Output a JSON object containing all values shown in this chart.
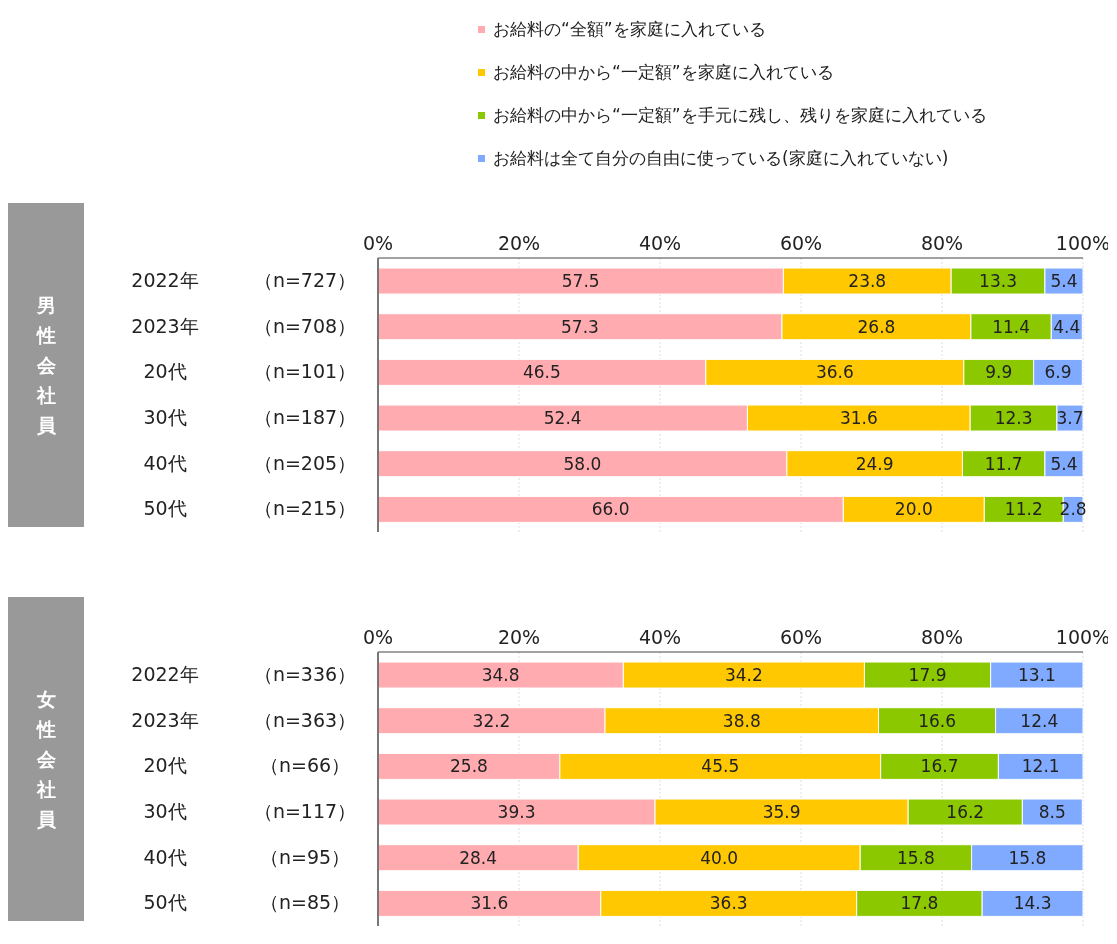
{
  "chart_data": [
    {
      "type": "bar",
      "orientation": "horizontal",
      "stacked": true,
      "ylabel": "男性会社員",
      "categories": [
        "2022年　（n=727）",
        "2023年　（n=708）",
        "20代　（n=101）",
        "30代　（n=187）",
        "40代　（n=205）",
        "50代　（n=215）"
      ],
      "series": [
        {
          "name": "お給料の“全額”を家庭に入れている",
          "color": "#ffabb0",
          "values": [
            57.5,
            57.3,
            46.5,
            52.4,
            58.0,
            66.0
          ],
          "value_labels": [
            "57.5",
            "57.3",
            "46.5",
            "52.4",
            "58.0",
            "66.0"
          ]
        },
        {
          "name": "お給料の中から“一定額”を家庭に入れている",
          "color": "#ffc800",
          "values": [
            23.8,
            26.8,
            36.6,
            31.6,
            24.9,
            20.0
          ],
          "value_labels": [
            "23.8",
            "26.8",
            "36.6",
            "31.6",
            "24.9",
            "20.0"
          ]
        },
        {
          "name": "お給料の中から“一定額”を手元に残し、残りを家庭に入れている",
          "color": "#8cc800",
          "values": [
            13.3,
            11.4,
            9.9,
            12.3,
            11.7,
            11.2
          ],
          "value_labels": [
            "13.3",
            "11.4",
            "9.9",
            "12.3",
            "11.7",
            "11.2"
          ]
        },
        {
          "name": "お給料は全て自分の自由に使っている(家庭に入れていない)",
          "color": "#80aaff",
          "values": [
            5.4,
            4.4,
            6.9,
            3.7,
            5.4,
            2.8
          ],
          "value_labels": [
            "5.4",
            "4.4",
            "6.9",
            "3.7",
            "5.4",
            "2.8"
          ]
        }
      ],
      "xlim": [
        0,
        100
      ],
      "xticks": [
        {
          "value": 0,
          "label": "0%"
        },
        {
          "value": 20,
          "label": "20%"
        },
        {
          "value": 40,
          "label": "40%"
        },
        {
          "value": 60,
          "label": "60%"
        },
        {
          "value": 80,
          "label": "80%"
        },
        {
          "value": 100,
          "label": "100%"
        }
      ],
      "grid": "x",
      "legend": "top"
    },
    {
      "type": "bar",
      "orientation": "horizontal",
      "stacked": true,
      "ylabel": "女性会社員",
      "categories": [
        "2022年　（n=336）",
        "2023年　（n=363）",
        "20代　（n=66）",
        "30代　（n=117）",
        "40代　（n=95）",
        "50代　（n=85）"
      ],
      "series": [
        {
          "color": "#ffabb0",
          "values": [
            34.8,
            32.2,
            25.8,
            39.3,
            28.4,
            31.6
          ],
          "value_labels": [
            "34.8",
            "32.2",
            "25.8",
            "39.3",
            "28.4",
            "31.6"
          ]
        },
        {
          "color": "#ffc800",
          "values": [
            34.2,
            38.8,
            45.5,
            35.9,
            40.0,
            36.3
          ],
          "value_labels": [
            "34.2",
            "38.8",
            "45.5",
            "35.9",
            "40.0",
            "36.3"
          ]
        },
        {
          "color": "#8cc800",
          "values": [
            17.9,
            16.6,
            16.7,
            16.2,
            15.8,
            17.8
          ],
          "value_labels": [
            "17.9",
            "16.6",
            "16.7",
            "16.2",
            "15.8",
            "17.8"
          ]
        },
        {
          "color": "#80aaff",
          "values": [
            13.1,
            12.4,
            12.1,
            8.5,
            15.8,
            14.3
          ],
          "value_labels": [
            "13.1",
            "12.4",
            "12.1",
            "8.5",
            "15.8",
            "14.3"
          ]
        }
      ],
      "xlim": [
        0,
        100
      ],
      "xticks": [
        {
          "value": 0,
          "label": "0%"
        },
        {
          "value": 20,
          "label": "20%"
        },
        {
          "value": 40,
          "label": "40%"
        },
        {
          "value": 60,
          "label": "60%"
        },
        {
          "value": 80,
          "label": "80%"
        },
        {
          "value": 100,
          "label": "100%"
        }
      ],
      "grid": "x"
    }
  ]
}
